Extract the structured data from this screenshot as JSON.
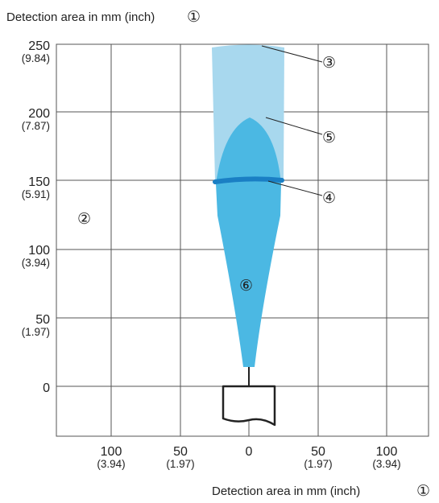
{
  "title_top": "Detection area in mm (inch)",
  "title_bottom": "Detection area in mm (inch)",
  "title_marker": "①",
  "y_ticks": [
    {
      "mm": "250",
      "inch": "(9.84)"
    },
    {
      "mm": "200",
      "inch": "(7.87)"
    },
    {
      "mm": "150",
      "inch": "(5.91)"
    },
    {
      "mm": "100",
      "inch": "(3.94)"
    },
    {
      "mm": "50",
      "inch": "(1.97)"
    },
    {
      "mm": "0",
      "inch": ""
    }
  ],
  "x_ticks": [
    {
      "mm": "100",
      "inch": "(3.94)"
    },
    {
      "mm": "50",
      "inch": "(1.97)"
    },
    {
      "mm": "0",
      "inch": ""
    },
    {
      "mm": "50",
      "inch": "(1.97)"
    },
    {
      "mm": "100",
      "inch": "(3.94)"
    }
  ],
  "callouts": {
    "c2": "②",
    "c3": "③",
    "c4": "④",
    "c5": "⑤",
    "c6": "⑥"
  },
  "colors": {
    "light_zone": "#a8d8ee",
    "dark_zone": "#4bb8e3",
    "band": "#1a7fc4",
    "grid": "#555555"
  }
}
